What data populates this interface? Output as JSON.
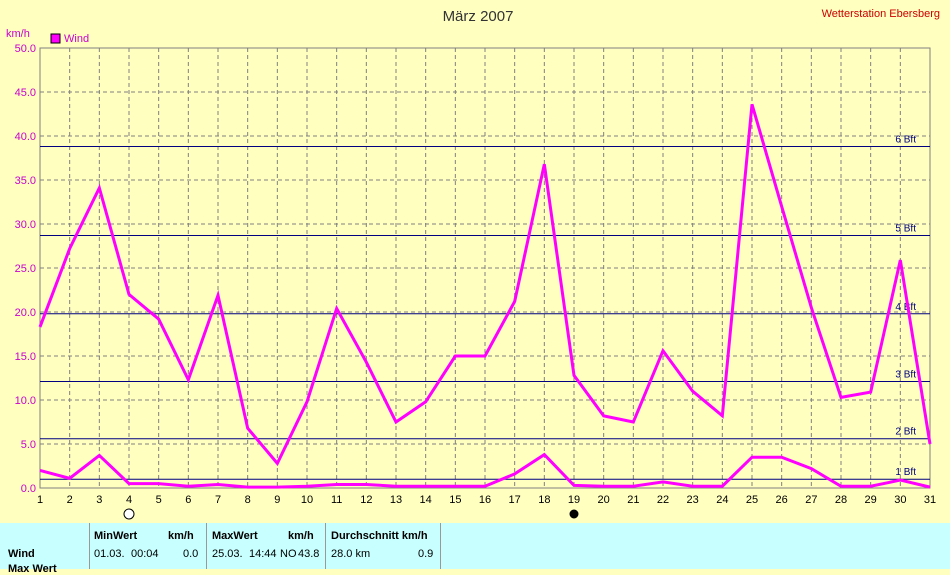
{
  "header": {
    "title": "März 2007",
    "station": "Wetterstation Ebersberg",
    "unit": "km/h"
  },
  "legend": {
    "label": "Wind",
    "color": "#ff00ff"
  },
  "colors": {
    "background": "#ffffc0",
    "line": "#ff00ff",
    "bft_line": "#000080",
    "grid": "#808080",
    "stats_bg": "#c8ffff"
  },
  "chart_data": {
    "type": "line",
    "title": "März 2007",
    "ylabel": "km/h",
    "ylim": [
      0,
      50
    ],
    "y_ticks": [
      "0.0",
      "5.0",
      "10.0",
      "15.0",
      "20.0",
      "25.0",
      "30.0",
      "35.0",
      "40.0",
      "45.0",
      "50.0"
    ],
    "x": [
      1,
      2,
      3,
      4,
      5,
      6,
      7,
      8,
      9,
      10,
      11,
      12,
      13,
      14,
      15,
      16,
      17,
      18,
      19,
      20,
      21,
      22,
      23,
      24,
      25,
      26,
      27,
      28,
      29,
      30,
      31
    ],
    "series": [
      {
        "name": "Wind",
        "values": [
          18.3,
          27.2,
          34.1,
          22.0,
          19.2,
          12.3,
          21.9,
          6.8,
          2.8,
          9.8,
          20.4,
          14.3,
          7.5,
          9.8,
          15.0,
          15.0,
          21.2,
          36.8,
          12.8,
          8.2,
          7.5,
          15.6,
          11.0,
          8.2,
          43.6,
          32.0,
          20.5,
          10.3,
          10.9,
          25.9,
          5.0
        ]
      },
      {
        "values": [
          2.0,
          1.1,
          3.7,
          0.5,
          0.5,
          0.2,
          0.4,
          0.1,
          0.1,
          0.2,
          0.4,
          0.4,
          0.2,
          0.2,
          0.2,
          0.2,
          1.6,
          3.8,
          0.3,
          0.2,
          0.2,
          0.7,
          0.2,
          0.2,
          3.5,
          3.5,
          2.2,
          0.2,
          0.2,
          0.9,
          0.1
        ]
      }
    ],
    "bft_lines": [
      {
        "label": "1 Bft",
        "value": 1
      },
      {
        "label": "2 Bft",
        "value": 5.6
      },
      {
        "label": "3 Bft",
        "value": 12.1
      },
      {
        "label": "4 Bft",
        "value": 19.8
      },
      {
        "label": "5 Bft",
        "value": 28.7
      },
      {
        "label": "6 Bft",
        "value": 38.8
      }
    ],
    "moon_phases": [
      {
        "day": 4,
        "phase": "full"
      },
      {
        "day": 19,
        "phase": "new"
      }
    ],
    "grid": true,
    "legend_position": "top-left"
  },
  "stats": {
    "row_label": "Wind",
    "row_label2": "Max Wert",
    "min_header": "MinWert",
    "min_unit": "km/h",
    "min_date": "01.03.",
    "min_time": "00:04",
    "min_value": "0.0",
    "max_header": "MaxWert",
    "max_unit": "km/h",
    "max_date": "25.03.",
    "max_time": "14:44",
    "max_dir": "NO",
    "max_value": "43.8",
    "avg_header": "Durchschnitt km/h",
    "avg_dist": "28.0 km",
    "avg_value": "0.9"
  }
}
